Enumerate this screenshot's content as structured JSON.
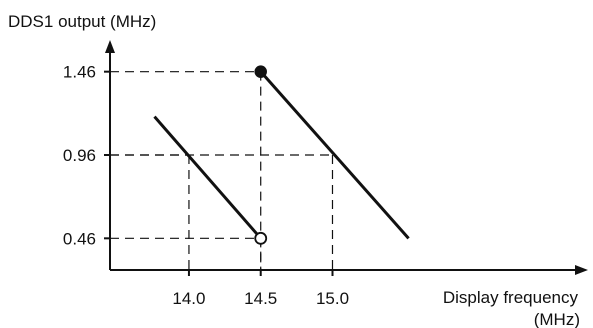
{
  "chart_data": {
    "type": "line",
    "ylabel": "DDS1 output (MHz)",
    "xlabel_line1": "Display frequency",
    "xlabel_line2": "(MHz)",
    "x_ticks": [
      "14.0",
      "14.5",
      "15.0"
    ],
    "y_ticks": [
      "1.46",
      "0.96",
      "0.46"
    ],
    "xlim": [
      13.45,
      16.78
    ],
    "ylim": [
      0.27,
      1.65
    ],
    "series": [
      {
        "x": [
          13.76,
          14.5
        ],
        "y": [
          1.19,
          0.46
        ],
        "end_marker": "open-circle"
      },
      {
        "x": [
          14.5,
          15.53
        ],
        "y": [
          1.46,
          0.46
        ],
        "start_marker": "filled-circle"
      }
    ],
    "reference_lines": [
      {
        "x": 14.0,
        "y": 0.96
      },
      {
        "x": 14.5,
        "y": 1.46
      },
      {
        "x": 14.5,
        "y": 0.46
      },
      {
        "x": 15.0,
        "y": 0.96
      }
    ],
    "colors": {
      "ink": "#111111"
    }
  }
}
